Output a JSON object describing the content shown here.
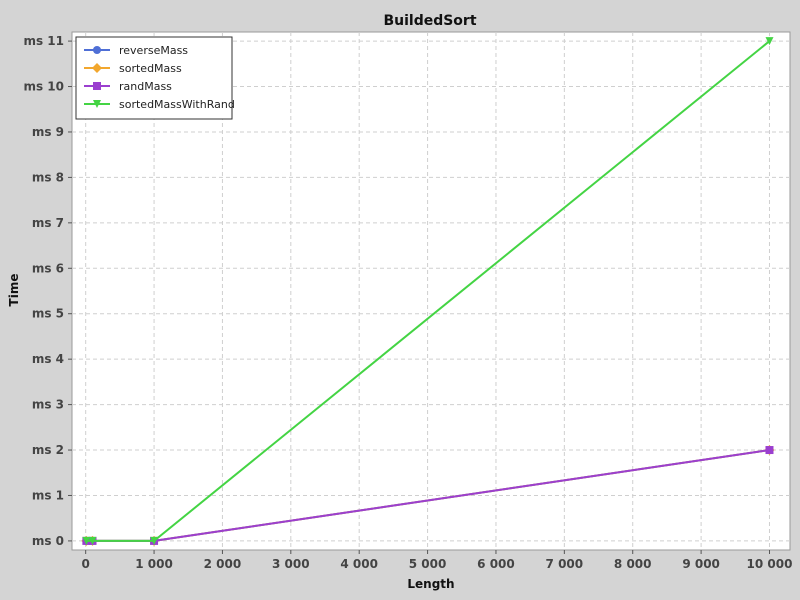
{
  "chart_data": {
    "type": "line",
    "title": "BuildedSort",
    "xlabel": "Length",
    "ylabel": "Time",
    "xlim": [
      -200,
      10300
    ],
    "ylim": [
      -0.2,
      11.2
    ],
    "x_ticks": [
      0,
      1000,
      2000,
      3000,
      4000,
      5000,
      6000,
      7000,
      8000,
      9000,
      10000
    ],
    "x_tick_labels": [
      "0",
      "1 000",
      "2 000",
      "3 000",
      "4 000",
      "5 000",
      "6 000",
      "7 000",
      "8 000",
      "9 000",
      "10 000"
    ],
    "y_ticks": [
      0,
      1,
      2,
      3,
      4,
      5,
      6,
      7,
      8,
      9,
      10,
      11
    ],
    "y_tick_labels": [
      "ms 0",
      "ms 1",
      "ms 2",
      "ms 3",
      "ms 4",
      "ms 5",
      "ms 6",
      "ms 7",
      "ms 8",
      "ms 9",
      "ms 10",
      "ms 11"
    ],
    "grid": true,
    "legend_position": "top-left",
    "series": [
      {
        "name": "reverseMass",
        "color": "#4f6fd6",
        "marker": "circle",
        "x": [
          10,
          100,
          1000,
          10000
        ],
        "y": [
          0,
          0,
          0,
          2
        ]
      },
      {
        "name": "sortedMass",
        "color": "#f2a72e",
        "marker": "diamond",
        "x": [
          10,
          100,
          1000,
          10000
        ],
        "y": [
          0,
          0,
          0,
          2
        ]
      },
      {
        "name": "randMass",
        "color": "#9b3fcf",
        "marker": "square",
        "x": [
          10,
          100,
          1000,
          10000
        ],
        "y": [
          0,
          0,
          0,
          2
        ]
      },
      {
        "name": "sortedMassWithRand",
        "color": "#44d444",
        "marker": "triangle-down",
        "x": [
          10,
          100,
          1000,
          10000
        ],
        "y": [
          0,
          0,
          0,
          11
        ]
      }
    ]
  }
}
